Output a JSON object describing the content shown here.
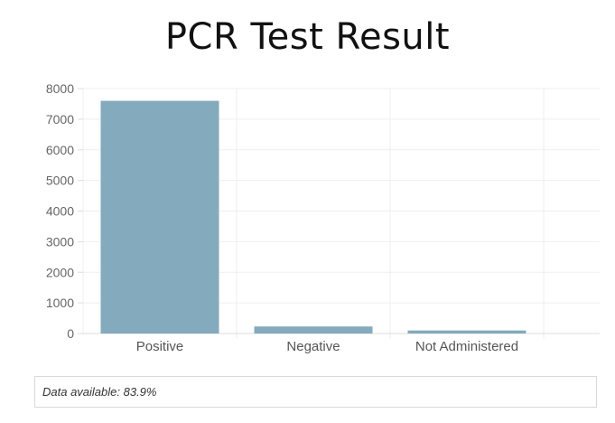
{
  "chart_data": {
    "type": "bar",
    "title": "PCR Test Result",
    "categories": [
      "Positive",
      "Negative",
      "Not Administered"
    ],
    "values": [
      7600,
      230,
      100
    ],
    "ylim": [
      0,
      8000
    ],
    "yticks": [
      0,
      1000,
      2000,
      3000,
      4000,
      5000,
      6000,
      7000,
      8000
    ],
    "xlabel": "",
    "ylabel": "",
    "grid": true,
    "bar_color": "#84aabd",
    "grid_color": "#efefef"
  },
  "footer": {
    "note": "Data available: 83.9%"
  }
}
